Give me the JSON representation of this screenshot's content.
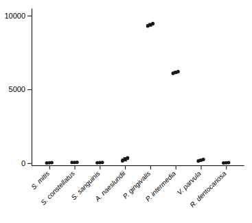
{
  "chart_data": {
    "type": "strip",
    "categories": [
      "S. mitis",
      "S. constellatus",
      "S. sanguinis",
      "A. naeslundii",
      "P. gingivalis",
      "P. intermedia",
      "V. parvula",
      "R. dentocariosa"
    ],
    "values": [
      25,
      50,
      35,
      260,
      9380,
      6150,
      200,
      25
    ],
    "errors": [
      12,
      18,
      12,
      110,
      90,
      70,
      55,
      12
    ],
    "points": [
      [
        18,
        26,
        32
      ],
      [
        42,
        52,
        60
      ],
      [
        28,
        36,
        42
      ],
      [
        150,
        265,
        360
      ],
      [
        9290,
        9370,
        9460
      ],
      [
        6080,
        6150,
        6210
      ],
      [
        145,
        200,
        255
      ],
      [
        18,
        26,
        32
      ]
    ],
    "color": "#1a1a1a",
    "ylim": [
      -150,
      10500
    ],
    "yticks": [
      0,
      5000,
      10000
    ]
  }
}
